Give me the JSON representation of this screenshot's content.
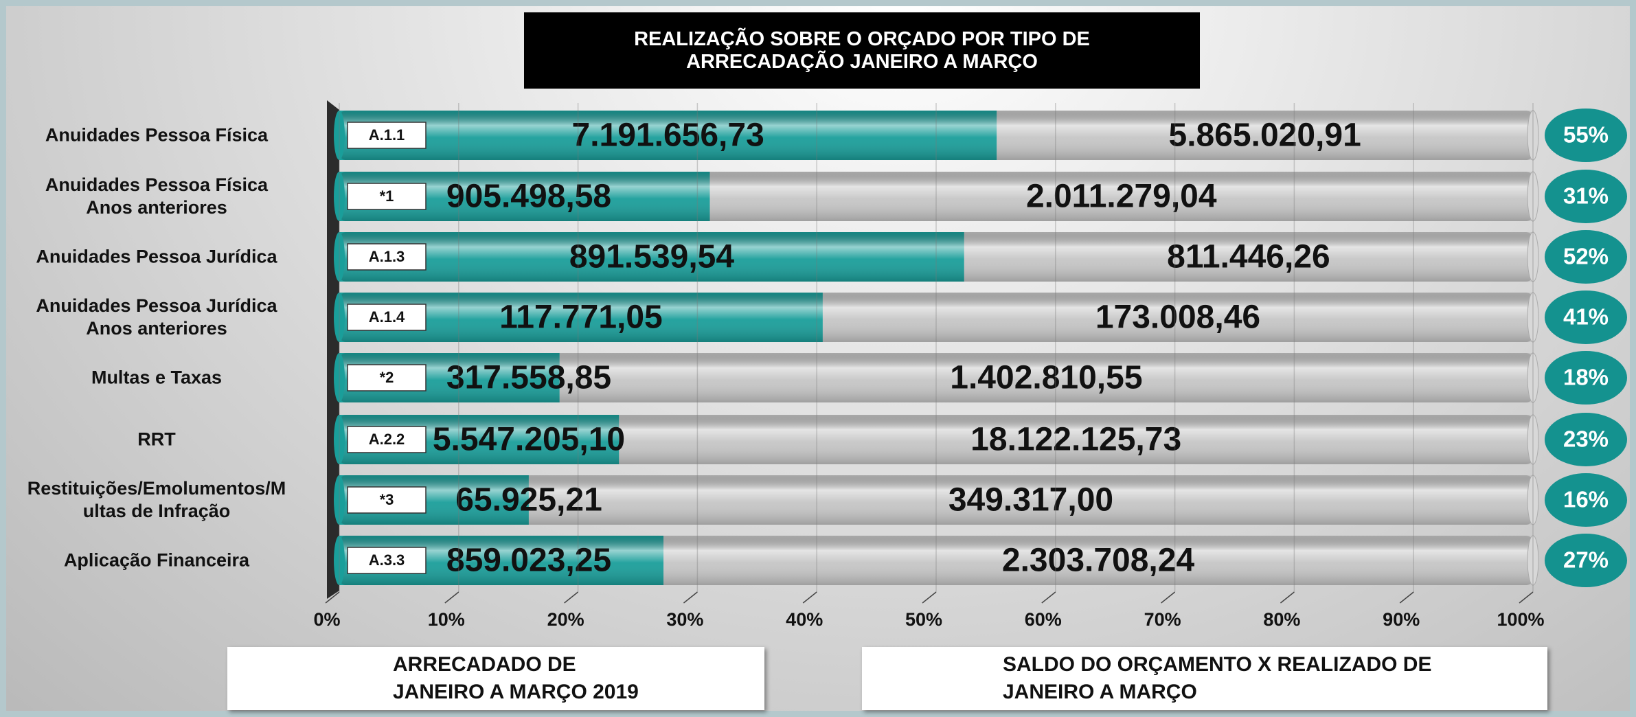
{
  "chart_data": {
    "type": "bar",
    "orientation": "horizontal",
    "stacked": "percent",
    "title": "REALIZAÇÃO SOBRE O ORÇADO POR TIPO DE\nARRECADAÇÃO JANEIRO A MARÇO",
    "categories": [
      "Anuidades Pessoa Física",
      "Anuidades Pessoa Física\nAnos anteriores",
      "Anuidades Pessoa Jurídica",
      "Anuidades Pessoa Jurídica\nAnos anteriores",
      "Multas e Taxas",
      "RRT",
      "Restituições/Emolumentos/M\nultas de Infração",
      "Aplicação Financeira"
    ],
    "codes": [
      "A.1.1",
      "*1",
      "A.1.3",
      "A.1.4",
      "*2",
      "A.2.2",
      "*3",
      "A.3.3"
    ],
    "series": [
      {
        "name": "ARRECADADO DE\nJANEIRO A MARÇO 2019",
        "color": "#1a9e9a",
        "values": [
          7191656.73,
          905498.58,
          891539.54,
          117771.05,
          317558.85,
          5547205.1,
          65925.21,
          859023.25
        ],
        "value_labels": [
          "7.191.656,73",
          "905.498,58",
          "891.539,54",
          "117.771,05",
          "317.558,85",
          "5.547.205,10",
          "65.925,21",
          "859.023,25"
        ]
      },
      {
        "name": "SALDO DO ORÇAMENTO X REALIZADO DE\nJANEIRO A MARÇO",
        "color": "#c6c6c6",
        "values": [
          5865020.91,
          2011279.04,
          811446.26,
          173008.46,
          1402810.55,
          18122125.73,
          349317.0,
          2303708.24
        ],
        "value_labels": [
          "5.865.020,91",
          "2.011.279,04",
          "811.446,26",
          "173.008,46",
          "1.402.810,55",
          "18.122.125,73",
          "349.317,00",
          "2.303.708,24"
        ]
      }
    ],
    "shares": [
      55,
      31,
      52,
      41,
      18,
      23,
      16,
      27
    ],
    "share_labels": [
      "55%",
      "31%",
      "52%",
      "41%",
      "18%",
      "23%",
      "16%",
      "27%"
    ],
    "share_color": "#14928f",
    "xlim": [
      0,
      100
    ],
    "xticks": [
      {
        "value": 0,
        "label": "0%"
      },
      {
        "value": 10,
        "label": "10%"
      },
      {
        "value": 20,
        "label": "20%"
      },
      {
        "value": 30,
        "label": "30%"
      },
      {
        "value": 40,
        "label": "40%"
      },
      {
        "value": 50,
        "label": "50%"
      },
      {
        "value": 60,
        "label": "60%"
      },
      {
        "value": 70,
        "label": "70%"
      },
      {
        "value": 80,
        "label": "80%"
      },
      {
        "value": 90,
        "label": "90%"
      },
      {
        "value": 100,
        "label": "100%"
      }
    ],
    "grid": true
  }
}
